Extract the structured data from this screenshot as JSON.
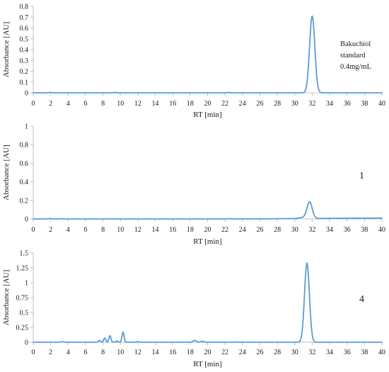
{
  "colors": {
    "trace": "#5b9bd5",
    "axis": "#bfbfbf",
    "text": "#1a1a1a"
  },
  "chart_data": [
    {
      "type": "line",
      "title": "",
      "xlabel": "RT [min]",
      "ylabel": "Absorbance [AU]",
      "xlim": [
        0,
        40
      ],
      "ylim": [
        0,
        0.8
      ],
      "xticks": [
        0,
        2,
        4,
        6,
        8,
        10,
        12,
        14,
        16,
        18,
        20,
        22,
        24,
        26,
        28,
        30,
        32,
        34,
        36,
        38,
        40
      ],
      "yticks": [
        0,
        0.1,
        0.2,
        0.3,
        0.4,
        0.5,
        0.6,
        0.7,
        0.8
      ],
      "ytick_labels": [
        "0",
        "0.1",
        "0.2",
        "0.3",
        "0.4",
        "0.5",
        "0.6",
        "0.7",
        "0.8"
      ],
      "grid": false,
      "annotation_lines": [
        "Bakuchiol",
        "standard",
        "0.4mg/mL"
      ],
      "series": [
        {
          "baseline": 0.0,
          "end_level": 0.0,
          "peaks": [
            {
              "rt": 2.0,
              "height": 0.004,
              "width": 0.15
            },
            {
              "rt": 9.4,
              "height": 0.004,
              "width": 0.15
            },
            {
              "rt": 22.4,
              "height": 0.004,
              "width": 0.15
            },
            {
              "rt": 32.0,
              "height": 0.71,
              "width": 0.3
            }
          ]
        }
      ]
    },
    {
      "type": "line",
      "title": "",
      "xlabel": "RT [min]",
      "ylabel": "Absorbance [AU]",
      "xlim": [
        0,
        40
      ],
      "ylim": [
        0,
        1
      ],
      "xticks": [
        0,
        2,
        4,
        6,
        8,
        10,
        12,
        14,
        16,
        18,
        20,
        22,
        24,
        26,
        28,
        30,
        32,
        34,
        36,
        38,
        40
      ],
      "yticks": [
        0,
        0.2,
        0.4,
        0.6,
        0.8,
        1
      ],
      "ytick_labels": [
        "0",
        "0.2",
        "0.4",
        "0.6",
        "0.8",
        "1"
      ],
      "grid": false,
      "annotation_lines": [
        "1"
      ],
      "series": [
        {
          "baseline": 0.0,
          "end_level": 0.01,
          "peaks": [
            {
              "rt": 2.0,
              "height": 0.005,
              "width": 0.15
            },
            {
              "rt": 3.2,
              "height": 0.004,
              "width": 0.15
            },
            {
              "rt": 22.5,
              "height": 0.004,
              "width": 0.15
            },
            {
              "rt": 30.8,
              "height": 0.01,
              "width": 0.4
            },
            {
              "rt": 31.7,
              "height": 0.18,
              "width": 0.3
            }
          ]
        }
      ]
    },
    {
      "type": "line",
      "title": "",
      "xlabel": "RT [min]",
      "ylabel": "Absorbance [AU]",
      "xlim": [
        0,
        40
      ],
      "ylim": [
        0,
        1.5
      ],
      "xticks": [
        0,
        2,
        4,
        6,
        8,
        10,
        12,
        14,
        16,
        18,
        20,
        22,
        24,
        26,
        28,
        30,
        32,
        34,
        36,
        38,
        40
      ],
      "yticks": [
        0,
        0.25,
        0.5,
        0.75,
        1,
        1.25,
        1.5
      ],
      "ytick_labels": [
        "0",
        "0.25",
        "0.5",
        "0.75",
        "1",
        "1.25",
        "1.5"
      ],
      "grid": false,
      "annotation_lines": [
        "4"
      ],
      "series": [
        {
          "baseline": 0.0,
          "end_level": 0.0,
          "peaks": [
            {
              "rt": 3.3,
              "height": 0.01,
              "width": 0.15
            },
            {
              "rt": 7.6,
              "height": 0.03,
              "width": 0.12
            },
            {
              "rt": 8.2,
              "height": 0.07,
              "width": 0.12
            },
            {
              "rt": 8.8,
              "height": 0.11,
              "width": 0.12
            },
            {
              "rt": 9.6,
              "height": 0.02,
              "width": 0.12
            },
            {
              "rt": 10.3,
              "height": 0.17,
              "width": 0.12
            },
            {
              "rt": 12.0,
              "height": 0.01,
              "width": 0.15
            },
            {
              "rt": 18.5,
              "height": 0.03,
              "width": 0.2
            },
            {
              "rt": 19.4,
              "height": 0.015,
              "width": 0.2
            },
            {
              "rt": 23.3,
              "height": 0.005,
              "width": 0.2
            },
            {
              "rt": 31.4,
              "height": 1.33,
              "width": 0.28
            }
          ]
        }
      ]
    }
  ]
}
